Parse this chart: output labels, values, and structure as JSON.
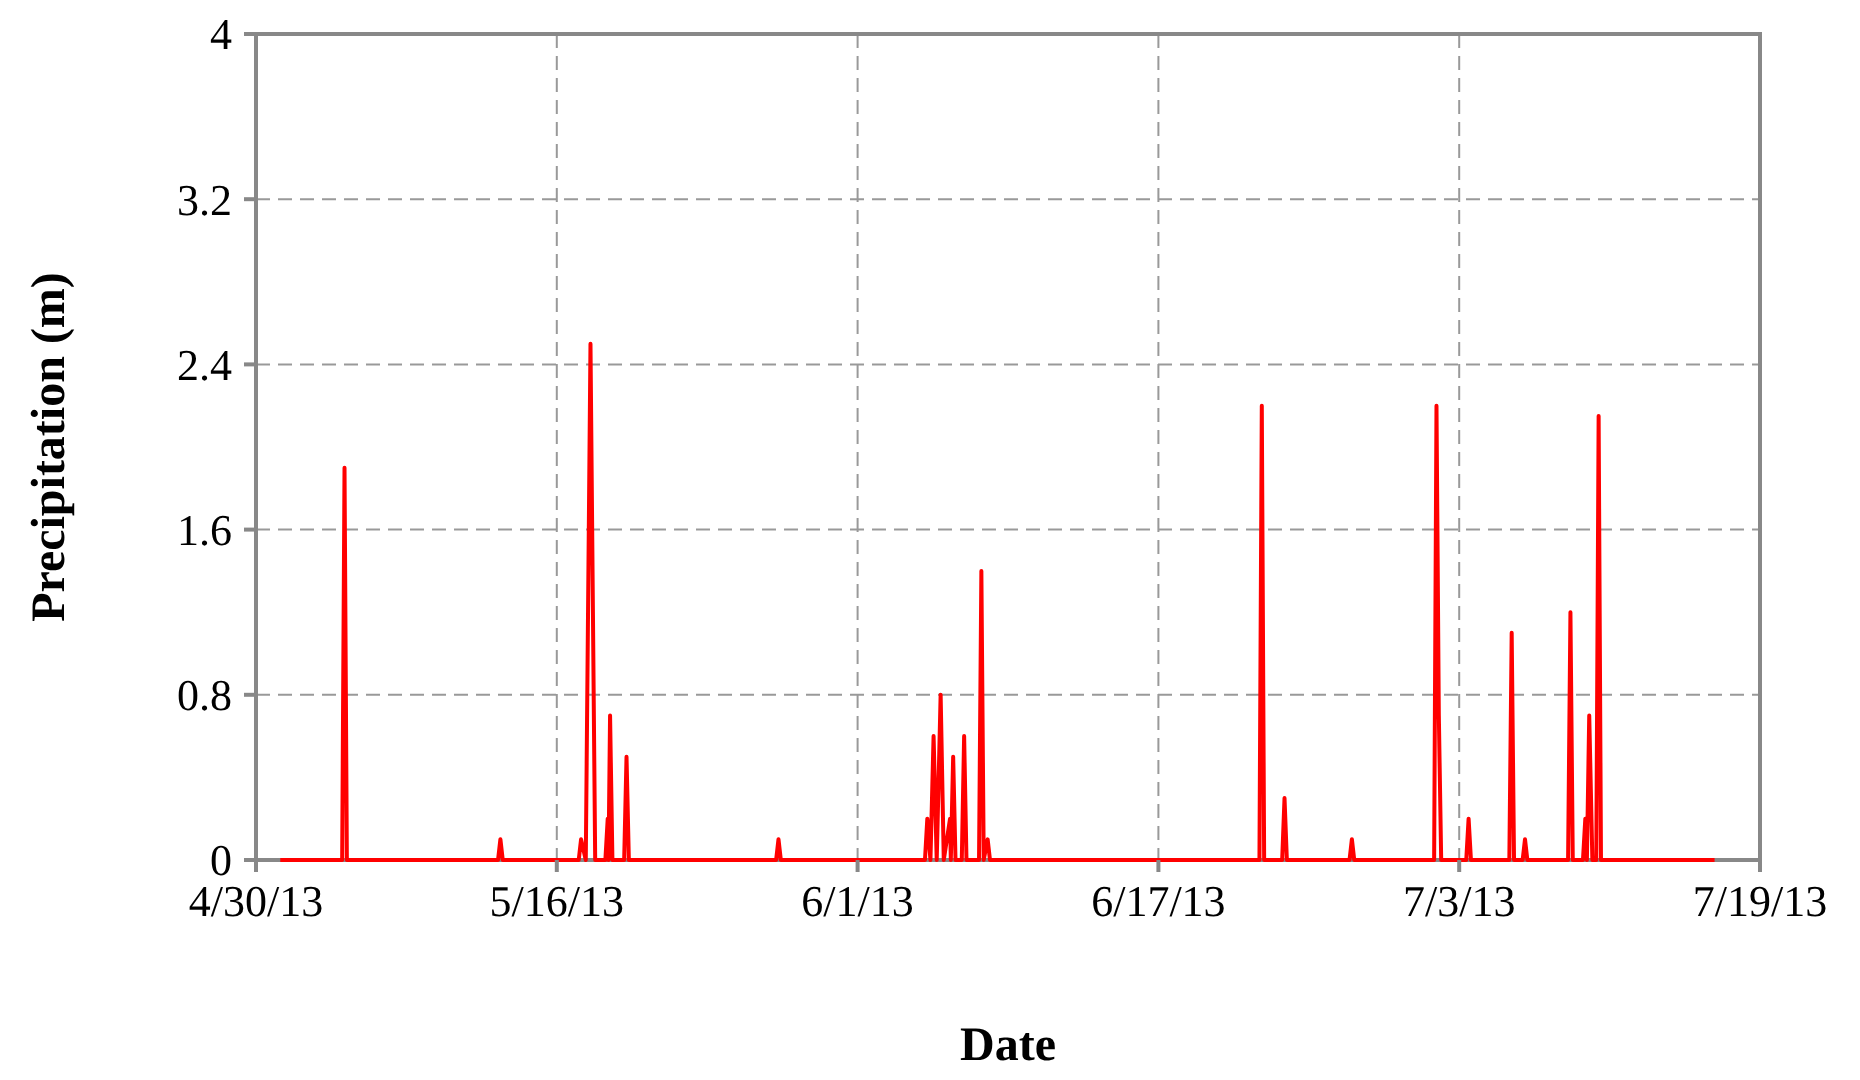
{
  "chart_data": {
    "type": "line",
    "xlabel": "Date",
    "ylabel": "Precipitation (m)",
    "xlim": [
      "2013-04-30",
      "2013-07-19"
    ],
    "xticks": [
      {
        "value": "2013-04-30",
        "label": "4/30/13"
      },
      {
        "value": "2013-05-16",
        "label": "5/16/13"
      },
      {
        "value": "2013-06-01",
        "label": "6/1/13"
      },
      {
        "value": "2013-06-17",
        "label": "6/17/13"
      },
      {
        "value": "2013-07-03",
        "label": "7/3/13"
      },
      {
        "value": "2013-07-19",
        "label": "7/19/13"
      }
    ],
    "ylim": [
      0,
      4
    ],
    "yticks": [
      0,
      0.8,
      1.6,
      2.4,
      3.2,
      4
    ],
    "grid": true,
    "marker": "none",
    "line_style": "solid",
    "series": [
      {
        "color": "#ff0000",
        "x": [
          "2013-05-01T07:00",
          "2013-05-04T14:00",
          "2013-05-04T17:00",
          "2013-05-04T20:00",
          "2013-05-12T21:00",
          "2013-05-13T00:00",
          "2013-05-13T03:00",
          "2013-05-17T04:00",
          "2013-05-17T07:00",
          "2013-05-17T13:00",
          "2013-05-17T19:00",
          "2013-05-18T01:00",
          "2013-05-18T14:00",
          "2013-05-18T17:00",
          "2013-05-18T18:00",
          "2013-05-18T20:00",
          "2013-05-18T23:00",
          "2013-05-19T14:00",
          "2013-05-19T17:00",
          "2013-05-19T20:00",
          "2013-05-27T16:00",
          "2013-05-27T19:00",
          "2013-05-27T22:00",
          "2013-06-04T14:00",
          "2013-06-04T17:00",
          "2013-06-04T21:00",
          "2013-06-05T01:00",
          "2013-06-05T05:00",
          "2013-06-05T10:00",
          "2013-06-05T14:00",
          "2013-06-05T22:00",
          "2013-06-05T23:00",
          "2013-06-06T02:00",
          "2013-06-06T05:00",
          "2013-06-06T13:00",
          "2013-06-06T16:00",
          "2013-06-06T19:00",
          "2013-06-07T11:00",
          "2013-06-07T14:00",
          "2013-06-07T17:00",
          "2013-06-07T22:00",
          "2013-06-08T01:00",
          "2013-06-22T09:00",
          "2013-06-22T12:00",
          "2013-06-22T15:00",
          "2013-06-23T14:00",
          "2013-06-23T17:00",
          "2013-06-23T20:00",
          "2013-06-27T04:00",
          "2013-06-27T07:00",
          "2013-06-27T10:00",
          "2013-07-01T16:00",
          "2013-07-01T19:00",
          "2013-07-01T22:00",
          "2013-07-02T01:00",
          "2013-07-03T09:00",
          "2013-07-03T12:00",
          "2013-07-03T15:00",
          "2013-07-05T16:00",
          "2013-07-05T19:00",
          "2013-07-05T22:00",
          "2013-07-06T09:00",
          "2013-07-06T12:00",
          "2013-07-06T15:00",
          "2013-07-08T19:00",
          "2013-07-08T22:00",
          "2013-07-09T01:00",
          "2013-07-09T14:00",
          "2013-07-09T17:00",
          "2013-07-09T19:00",
          "2013-07-09T22:00",
          "2013-07-10T02:00",
          "2013-07-10T07:00",
          "2013-07-10T10:00",
          "2013-07-10T13:00",
          "2013-07-16T14:00"
        ],
        "values": [
          0,
          0,
          1.9,
          0,
          0,
          0.1,
          0,
          0,
          0.1,
          0,
          2.5,
          0,
          0,
          0.2,
          0,
          0.7,
          0,
          0,
          0.5,
          0,
          0,
          0.1,
          0,
          0,
          0.2,
          0,
          0.6,
          0,
          0.8,
          0,
          0.2,
          0,
          0.5,
          0,
          0,
          0.6,
          0,
          0,
          1.4,
          0,
          0.1,
          0,
          0,
          2.2,
          0,
          0,
          0.3,
          0,
          0,
          0.1,
          0,
          0,
          2.2,
          0.7,
          0,
          0,
          0.2,
          0,
          0,
          1.1,
          0,
          0,
          0.1,
          0,
          0,
          1.2,
          0,
          0,
          0.2,
          0,
          0.7,
          0,
          0,
          2.15,
          0,
          0
        ]
      }
    ]
  }
}
